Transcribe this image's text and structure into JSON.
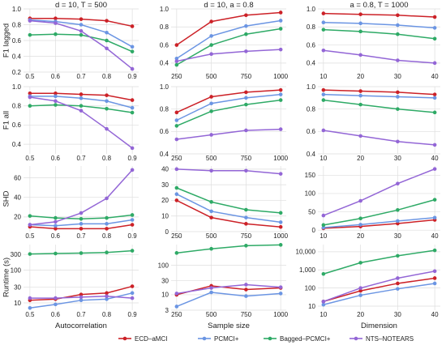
{
  "chart_data": {
    "type": "line",
    "columns": [
      {
        "title": "d = 10, T = 500",
        "xlabel": "Autocorrelation",
        "x": [
          0.5,
          0.6,
          0.7,
          0.8,
          0.9
        ],
        "xticks": [
          "0.5",
          "0.6",
          "0.7",
          "0.8",
          "0.9"
        ],
        "xlim": [
          0.475,
          0.925
        ]
      },
      {
        "title": "d = 10, a = 0.8",
        "xlabel": "Sample size",
        "x": [
          250,
          500,
          750,
          1000
        ],
        "xticks": [
          "250",
          "500",
          "750",
          "1000"
        ],
        "xlim": [
          210,
          1040
        ]
      },
      {
        "title": "a = 0.8, T = 1000",
        "xlabel": "Dimension",
        "x": [
          10,
          20,
          30,
          40
        ],
        "xticks": [
          "10",
          "20",
          "30",
          "40"
        ],
        "xlim": [
          8.5,
          41.5
        ]
      }
    ],
    "rows": [
      {
        "ylabel": "F1 lagged",
        "scale": "linear",
        "ylims": [
          [
            0.2,
            1.0
          ],
          [
            0.3,
            1.0
          ],
          [
            0.3,
            1.0
          ]
        ],
        "yticks": [
          [
            "0.2",
            "0.4",
            "0.6",
            "0.8",
            "1.0"
          ],
          [
            "0.4",
            "0.6",
            "0.8",
            "1.0"
          ],
          [
            "0.4",
            "0.6",
            "0.8",
            "1.0"
          ]
        ],
        "ytickvals": [
          [
            0.2,
            0.4,
            0.6,
            0.8,
            1.0
          ],
          [
            0.4,
            0.6,
            0.8,
            1.0
          ],
          [
            0.4,
            0.6,
            0.8,
            1.0
          ]
        ],
        "panels": [
          [
            [
              0.88,
              0.88,
              0.87,
              0.85,
              0.78
            ],
            [
              0.86,
              0.84,
              0.8,
              0.7,
              0.52
            ],
            [
              0.67,
              0.68,
              0.67,
              0.6,
              0.46
            ],
            [
              0.85,
              0.82,
              0.72,
              0.5,
              0.24
            ]
          ],
          [
            [
              0.6,
              0.86,
              0.93,
              0.96
            ],
            [
              0.45,
              0.7,
              0.81,
              0.87
            ],
            [
              0.38,
              0.6,
              0.72,
              0.78
            ],
            [
              0.42,
              0.5,
              0.53,
              0.55
            ]
          ],
          [
            [
              0.95,
              0.94,
              0.93,
              0.91
            ],
            [
              0.85,
              0.84,
              0.82,
              0.79
            ],
            [
              0.77,
              0.75,
              0.72,
              0.67
            ],
            [
              0.54,
              0.49,
              0.43,
              0.4
            ]
          ]
        ]
      },
      {
        "ylabel": "F1 all",
        "scale": "linear",
        "ylims": [
          [
            0.3,
            1.0
          ],
          [
            0.4,
            1.0
          ],
          [
            0.4,
            1.0
          ]
        ],
        "yticks": [
          [
            "0.4",
            "0.6",
            "0.8",
            "1.0"
          ],
          [
            "0.4",
            "0.6",
            "0.8",
            "1.0"
          ],
          [
            "0.4",
            "0.6",
            "0.8",
            "1.0"
          ]
        ],
        "ytickvals": [
          [
            0.4,
            0.6,
            0.8,
            1.0
          ],
          [
            0.4,
            0.6,
            0.8,
            1.0
          ],
          [
            0.4,
            0.6,
            0.8,
            1.0
          ]
        ],
        "panels": [
          [
            [
              0.93,
              0.93,
              0.92,
              0.91,
              0.86
            ],
            [
              0.9,
              0.9,
              0.88,
              0.85,
              0.78
            ],
            [
              0.8,
              0.81,
              0.8,
              0.77,
              0.73
            ],
            [
              0.89,
              0.85,
              0.75,
              0.56,
              0.36
            ]
          ],
          [
            [
              0.77,
              0.91,
              0.95,
              0.97
            ],
            [
              0.7,
              0.85,
              0.9,
              0.93
            ],
            [
              0.65,
              0.78,
              0.84,
              0.88
            ],
            [
              0.53,
              0.57,
              0.61,
              0.62
            ]
          ],
          [
            [
              0.97,
              0.96,
              0.95,
              0.93
            ],
            [
              0.93,
              0.92,
              0.91,
              0.9
            ],
            [
              0.88,
              0.84,
              0.8,
              0.77
            ],
            [
              0.61,
              0.56,
              0.51,
              0.48
            ]
          ]
        ]
      },
      {
        "ylabel": "SHD",
        "scale": "linear",
        "ylims": [
          [
            5,
            72
          ],
          [
            0,
            42
          ],
          [
            -4,
            175
          ]
        ],
        "yticks": [
          [
            "20",
            "40",
            "60"
          ],
          [
            "0",
            "10",
            "20",
            "30",
            "40"
          ],
          [
            "0",
            "50",
            "100",
            "150"
          ]
        ],
        "ytickvals": [
          [
            20,
            40,
            60
          ],
          [
            0,
            10,
            20,
            30,
            40
          ],
          [
            0,
            50,
            100,
            150
          ]
        ],
        "panels": [
          [
            [
              10,
              8,
              8,
              8,
              12
            ],
            [
              12,
              11,
              13,
              13,
              17
            ],
            [
              21,
              19,
              18,
              19,
              22
            ],
            [
              12,
              15,
              24,
              39,
              68
            ]
          ],
          [
            [
              20,
              9,
              5,
              3
            ],
            [
              24,
              13,
              9,
              6
            ],
            [
              28,
              19,
              14,
              12
            ],
            [
              40,
              39,
              39,
              37
            ]
          ],
          [
            [
              5,
              10,
              18,
              28
            ],
            [
              7,
              15,
              25,
              34
            ],
            [
              14,
              32,
              55,
              83
            ],
            [
              40,
              80,
              127,
              167
            ]
          ]
        ]
      },
      {
        "ylabel": "Runtime (s)",
        "scale": "log",
        "ylims": [
          [
            6,
            600
          ],
          [
            3,
            500
          ],
          [
            6,
            25000
          ]
        ],
        "yticks": [
          [
            "10",
            "30",
            "100",
            "300"
          ],
          [
            "3",
            "10",
            "30",
            "100"
          ],
          [
            "10",
            "100",
            "1,000",
            "10,000"
          ]
        ],
        "ytickvals": [
          [
            10,
            30,
            100,
            300
          ],
          [
            3,
            10,
            30,
            100
          ],
          [
            10,
            100,
            1000,
            10000
          ]
        ],
        "panels": [
          [
            [
              12,
              13,
              18,
              20,
              32
            ],
            [
              7,
              9,
              12,
              13,
              20
            ],
            [
              310,
              320,
              330,
              345,
              390
            ],
            [
              14,
              14,
              15,
              16,
              14
            ]
          ],
          [
            [
              10,
              20,
              15,
              17
            ],
            [
              4,
              12,
              9,
              11
            ],
            [
              260,
              360,
              460,
              490
            ],
            [
              11,
              17,
              22,
              18
            ]
          ],
          [
            [
              18,
              70,
              180,
              350
            ],
            [
              12,
              40,
              90,
              180
            ],
            [
              600,
              2500,
              6000,
              12000
            ],
            [
              18,
              100,
              350,
              850
            ]
          ]
        ]
      }
    ],
    "series": [
      {
        "name": "ECD–aMCI",
        "color": "#cc2127"
      },
      {
        "name": "PCMCI+",
        "color": "#6b95e3"
      },
      {
        "name": "Bagged–PCMCI+",
        "color": "#2eaa66"
      },
      {
        "name": "NTS–NOTEARS",
        "color": "#9366d6"
      }
    ],
    "legend_position": "bottom",
    "grid": true
  }
}
